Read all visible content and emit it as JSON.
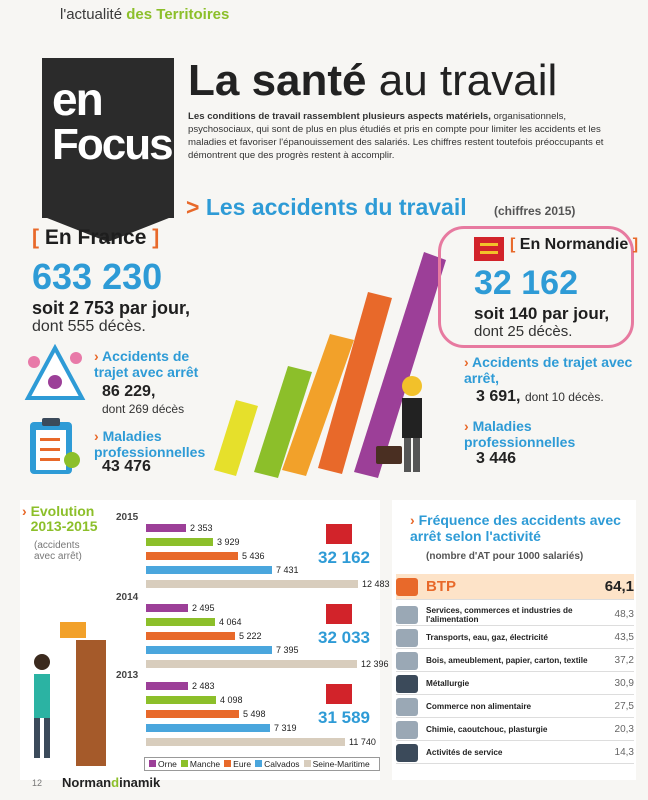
{
  "header": {
    "kicker_a": "l'actualité",
    "kicker_b": "des Territoires",
    "focus_en": "en",
    "focus_word": "Focus",
    "title_bold": "La santé",
    "title_rest": "au travail",
    "intro_bold": "Les conditions de travail rassemblent plusieurs aspects matériels,",
    "intro_rest": "organisationnels, psychosociaux, qui sont de plus en plus étudiés et pris en compte pour limiter les accidents et les maladies et favoriser l'épanouissement des salariés. Les chiffres restent toutefois préoccupants et démontrent que des progrès restent à accomplir."
  },
  "accidents": {
    "arrow": ">",
    "title": "Les accidents du travail",
    "subtitle": "(chiffres 2015)"
  },
  "france": {
    "head": "En France",
    "total": "633 230",
    "per_day": "soit 2 753 par jour,",
    "deaths": "dont 555 décès.",
    "trajet_label": "Accidents de trajet avec arrêt",
    "trajet_num": "86 229,",
    "trajet_sub": "dont 269 décès",
    "maladies_label": "Maladies professionnelles",
    "maladies_num": "43 476"
  },
  "normandie": {
    "head": "En Normandie",
    "total": "32 162",
    "per_day": "soit 140 par jour,",
    "deaths": "dont 25 décès.",
    "trajet_label": "Accidents de trajet avec arrêt,",
    "trajet_num": "3 691,",
    "trajet_sub": "dont 10 décès.",
    "maladies_label": "Maladies professionnelles",
    "maladies_num": "3 446"
  },
  "evolution": {
    "title": "Evolution 2013-2015",
    "subtitle": "(accidents avec arrêt)",
    "legend": [
      "Orne",
      "Manche",
      "Eure",
      "Calvados",
      "Seine-Maritime"
    ]
  },
  "frequency": {
    "title": "Fréquence des accidents avec arrêt selon l'activité",
    "subtitle": "(nombre d'AT pour 1000 salariés)"
  },
  "footer": {
    "page": "12",
    "brand_a": "Norman",
    "brand_b": "d",
    "brand_c": "inamik"
  },
  "colors": {
    "orne": "#9c3f98",
    "manche": "#8cbf2a",
    "eure": "#e8692a",
    "calvados": "#4aa6dd",
    "seine": "#d8cdbd",
    "accent_blue": "#2e9bd6",
    "accent_orange": "#e8692a"
  },
  "chart_data": [
    {
      "type": "bar",
      "title": "Evolution 2013-2015",
      "subtitle": "(accidents avec arrêt)",
      "categories": [
        "2015",
        "2014",
        "2013"
      ],
      "series": [
        {
          "name": "Orne",
          "values": [
            2353,
            2495,
            2483
          ]
        },
        {
          "name": "Manche",
          "values": [
            3929,
            4064,
            4098
          ]
        },
        {
          "name": "Eure",
          "values": [
            5436,
            5222,
            5498
          ]
        },
        {
          "name": "Calvados",
          "values": [
            7431,
            7395,
            7319
          ]
        },
        {
          "name": "Seine-Maritime",
          "values": [
            12483,
            12396,
            11740
          ]
        }
      ],
      "value_labels": {
        "2015": [
          "2 353",
          "3 929",
          "5 436",
          "7 431",
          "12 483"
        ],
        "2014": [
          "2 495",
          "4 064",
          "5 222",
          "7 395",
          "12 396"
        ],
        "2013": [
          "2 483",
          "4 098",
          "5 498",
          "7 319",
          "11 740"
        ]
      },
      "totals": [
        "32 162",
        "32 033",
        "31 589"
      ],
      "xlim": [
        0,
        12483
      ]
    },
    {
      "type": "table",
      "title": "Fréquence des accidents avec arrêt selon l'activité",
      "subtitle": "(nombre d'AT pour 1000 salariés)",
      "rows": [
        {
          "label": "BTP",
          "value": "64,1"
        },
        {
          "label": "Services, commerces et industries de l'alimentation",
          "value": "48,3"
        },
        {
          "label": "Transports, eau, gaz, électricité",
          "value": "43,5"
        },
        {
          "label": "Bois, ameublement, papier, carton, textile",
          "value": "37,2"
        },
        {
          "label": "Métallurgie",
          "value": "30,9"
        },
        {
          "label": "Commerce non alimentaire",
          "value": "27,5"
        },
        {
          "label": "Chimie, caoutchouc, plasturgie",
          "value": "20,3"
        },
        {
          "label": "Activités de service",
          "value": "14,3"
        }
      ]
    }
  ]
}
